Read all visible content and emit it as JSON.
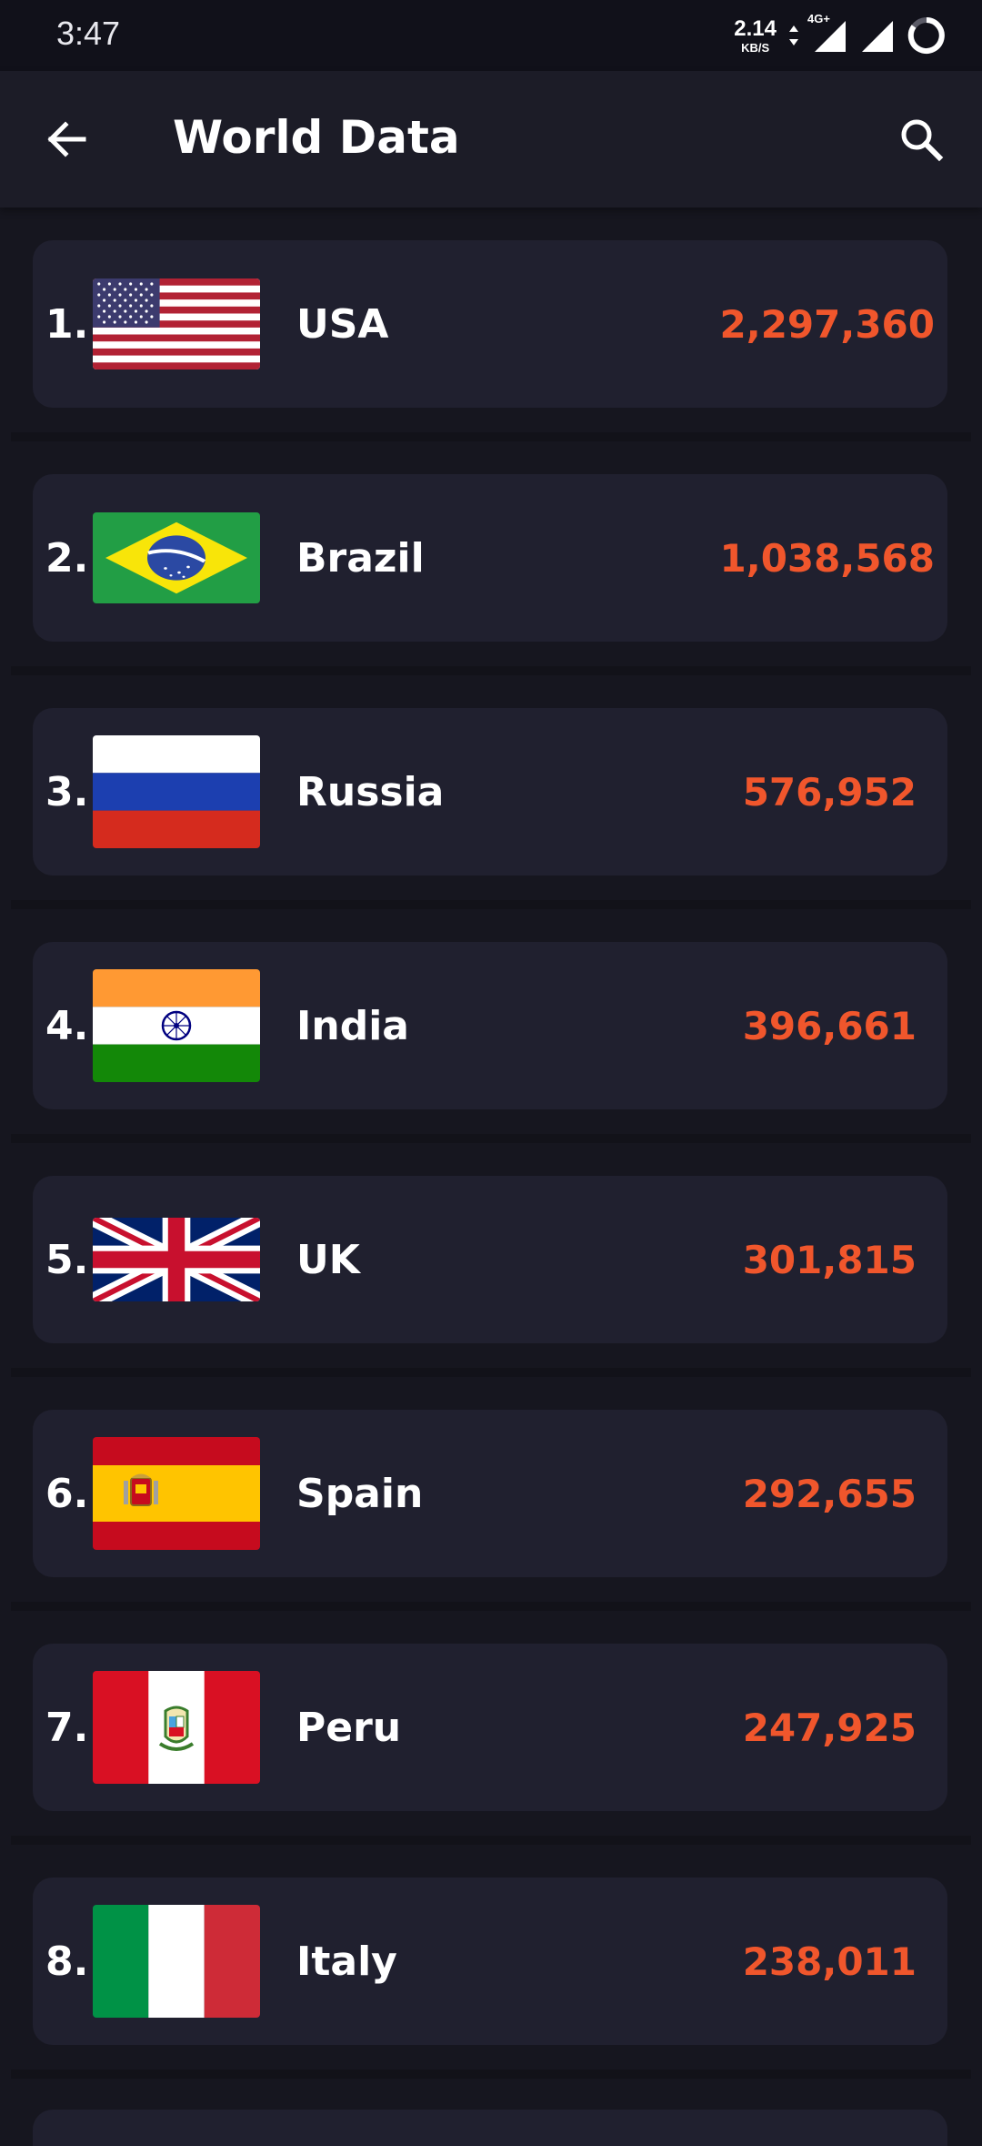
{
  "status_bar": {
    "time": "3:47",
    "net_speed_value": "2.14",
    "net_speed_unit": "KB/S",
    "network_type": "4G+"
  },
  "app_bar": {
    "title": "World Data",
    "back_icon": "arrow-left-icon",
    "search_icon": "search-icon"
  },
  "colors": {
    "background": "#16161f",
    "card": "#20202f",
    "count_accent": "#f0562c"
  },
  "countries": [
    {
      "rank": "1.",
      "name": "USA",
      "count": "2,297,360",
      "flag": "usa-flag-icon"
    },
    {
      "rank": "2.",
      "name": "Brazil",
      "count": "1,038,568",
      "flag": "brazil-flag-icon"
    },
    {
      "rank": "3.",
      "name": "Russia",
      "count": "576,952",
      "flag": "russia-flag-icon"
    },
    {
      "rank": "4.",
      "name": "India",
      "count": "396,661",
      "flag": "india-flag-icon"
    },
    {
      "rank": "5.",
      "name": "UK",
      "count": "301,815",
      "flag": "uk-flag-icon"
    },
    {
      "rank": "6.",
      "name": "Spain",
      "count": "292,655",
      "flag": "spain-flag-icon"
    },
    {
      "rank": "7.",
      "name": "Peru",
      "count": "247,925",
      "flag": "peru-flag-icon"
    },
    {
      "rank": "8.",
      "name": "Italy",
      "count": "238,011",
      "flag": "italy-flag-icon"
    }
  ]
}
